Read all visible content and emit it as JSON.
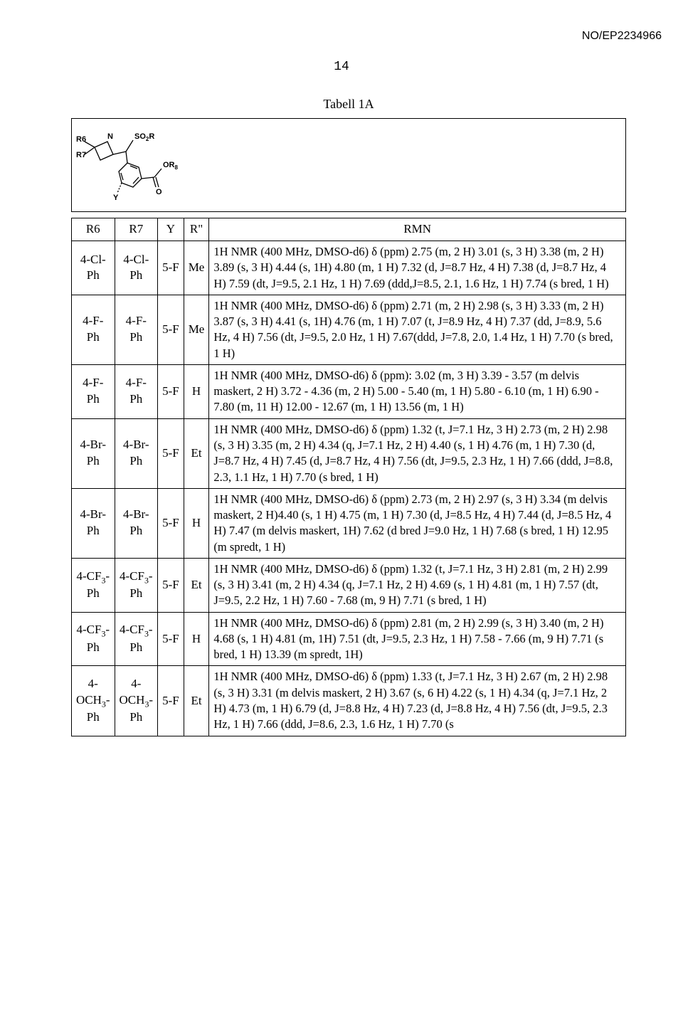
{
  "doc_id": "NO/EP2234966",
  "page_number": "14",
  "table_title": "Tabell 1A",
  "structure_labels": {
    "R6": "R6",
    "R7": "R7",
    "SO2R": "SO₂R",
    "OR8": "OR₈",
    "Y": "Y",
    "O": "O",
    "N": "N"
  },
  "columns": [
    "R6",
    "R7",
    "Y",
    "R\"",
    "RMN"
  ],
  "rows": [
    {
      "r6": "4-Cl-Ph",
      "r7": "4-Cl-Ph",
      "y": "5-F",
      "r": "Me",
      "rmn": "1H NMR (400 MHz, DMSO-d6) δ (ppm) 2.75 (m, 2 H) 3.01 (s, 3 H) 3.38 (m, 2 H) 3.89 (s, 3 H) 4.44 (s, 1H) 4.80 (m, 1 H) 7.32 (d, J=8.7 Hz, 4 H) 7.38 (d, J=8.7 Hz, 4 H) 7.59 (dt, J=9.5, 2.1 Hz, 1 H) 7.69 (ddd,J=8.5, 2.1, 1.6 Hz, 1 H) 7.74 (s bred, 1 H)"
    },
    {
      "r6": "4-F-Ph",
      "r7": "4-F-Ph",
      "y": "5-F",
      "r": "Me",
      "rmn": "1H NMR (400 MHz, DMSO-d6) δ (ppm) 2.71 (m, 2 H) 2.98 (s, 3 H) 3.33 (m, 2 H) 3.87 (s, 3 H) 4.41 (s, 1H) 4.76 (m, 1 H) 7.07 (t, J=8.9 Hz, 4 H) 7.37 (dd, J=8.9, 5.6 Hz, 4 H) 7.56 (dt, J=9.5, 2.0 Hz, 1 H) 7.67(ddd, J=7.8, 2.0, 1.4 Hz, 1 H) 7.70 (s bred, 1 H)"
    },
    {
      "r6": "4-F-Ph",
      "r7": "4-F-Ph",
      "y": "5-F",
      "r": "H",
      "rmn": "1H NMR (400 MHz, DMSO-d6) δ (ppm): 3.02 (m, 3 H) 3.39 - 3.57 (m delvis maskert, 2 H) 3.72 - 4.36 (m, 2 H) 5.00 - 5.40 (m, 1 H) 5.80 - 6.10 (m, 1 H) 6.90 - 7.80 (m, 11 H) 12.00 - 12.67 (m, 1 H) 13.56 (m, 1 H)"
    },
    {
      "r6": "4-Br-Ph",
      "r7": "4-Br-Ph",
      "y": "5-F",
      "r": "Et",
      "rmn": "1H NMR (400 MHz, DMSO-d6) δ (ppm) 1.32 (t, J=7.1 Hz, 3 H) 2.73 (m, 2 H) 2.98 (s, 3 H) 3.35 (m, 2 H) 4.34 (q, J=7.1 Hz, 2 H) 4.40 (s, 1 H) 4.76 (m, 1 H) 7.30 (d, J=8.7 Hz, 4 H) 7.45 (d, J=8.7 Hz, 4 H) 7.56 (dt, J=9.5, 2.3 Hz, 1 H) 7.66 (ddd, J=8.8, 2.3, 1.1 Hz, 1 H) 7.70 (s bred, 1 H)"
    },
    {
      "r6": "4-Br-Ph",
      "r7": "4-Br-Ph",
      "y": "5-F",
      "r": "H",
      "rmn": "1H NMR (400 MHz, DMSO-d6) δ (ppm) 2.73 (m, 2 H) 2.97 (s, 3 H) 3.34 (m delvis maskert, 2 H)4.40 (s, 1 H) 4.75 (m, 1 H) 7.30 (d, J=8.5 Hz, 4 H) 7.44 (d, J=8.5 Hz, 4 H) 7.47 (m delvis maskert, 1H) 7.62 (d bred J=9.0 Hz, 1 H) 7.68 (s bred, 1 H) 12.95 (m spredt, 1 H)"
    },
    {
      "r6": "4-CF₃-Ph",
      "r7": "4-CF₃-Ph",
      "y": "5-F",
      "r": "Et",
      "rmn": "1H NMR (400 MHz, DMSO-d6) δ (ppm) 1.32 (t, J=7.1 Hz, 3 H) 2.81 (m, 2 H) 2.99 (s, 3 H) 3.41 (m, 2 H) 4.34 (q, J=7.1 Hz, 2 H) 4.69 (s, 1 H) 4.81 (m, 1 H) 7.57 (dt, J=9.5, 2.2 Hz, 1 H) 7.60 - 7.68 (m, 9 H) 7.71 (s bred, 1 H)"
    },
    {
      "r6": "4-CF₃-Ph",
      "r7": "4-CF₃-Ph",
      "y": "5-F",
      "r": "H",
      "rmn": "1H NMR (400 MHz, DMSO-d6) δ (ppm) 2.81 (m, 2 H) 2.99 (s, 3 H) 3.40 (m, 2 H) 4.68 (s, 1 H) 4.81 (m, 1H) 7.51 (dt, J=9.5, 2.3 Hz, 1 H) 7.58 - 7.66 (m, 9 H) 7.71 (s bred, 1 H) 13.39 (m spredt, 1H)"
    },
    {
      "r6": "4-OCH₃-Ph",
      "r7": "4-OCH₃-Ph",
      "y": "5-F",
      "r": "Et",
      "rmn": "1H NMR (400 MHz, DMSO-d6) δ (ppm) 1.33 (t, J=7.1 Hz, 3 H) 2.67 (m, 2 H) 2.98 (s, 3 H) 3.31 (m delvis maskert, 2 H) 3.67 (s, 6 H) 4.22 (s, 1 H) 4.34 (q, J=7.1 Hz, 2 H) 4.73 (m, 1 H) 6.79 (d, J=8.8 Hz, 4 H) 7.23 (d, J=8.8 Hz, 4 H) 7.56 (dt, J=9.5, 2.3 Hz, 1 H) 7.66 (ddd, J=8.6, 2.3, 1.6 Hz, 1 H) 7.70 (s"
    }
  ]
}
